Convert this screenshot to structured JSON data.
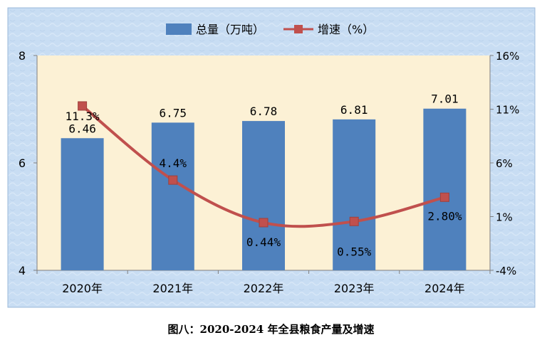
{
  "caption": "图八：2020-2024 年全县粮食产量及增速",
  "chart_data": {
    "type": "bar",
    "categories": [
      "2020年",
      "2021年",
      "2022年",
      "2023年",
      "2024年"
    ],
    "series": [
      {
        "name": "总量（万吨）",
        "type": "bar",
        "axis": "left",
        "values": [
          6.46,
          6.75,
          6.78,
          6.81,
          7.01
        ],
        "labels": [
          "6.46",
          "6.75",
          "6.78",
          "6.81",
          "7.01"
        ],
        "color": "#4F81BD"
      },
      {
        "name": "增速（%）",
        "type": "line",
        "axis": "right",
        "values": [
          11.3,
          4.4,
          0.44,
          0.55,
          2.8
        ],
        "labels": [
          "11.3%",
          "4.4%",
          "0.44%",
          "0.55%",
          "2.80%"
        ],
        "color": "#C0504D"
      }
    ],
    "y_left": {
      "ylim": [
        4,
        8
      ],
      "ticks": [
        "4",
        "6",
        "8"
      ]
    },
    "y_right": {
      "ylim": [
        -4,
        16
      ],
      "ticks": [
        "-4%",
        "1%",
        "6%",
        "11%",
        "16%"
      ]
    },
    "legend_position": "top-center",
    "grid": false
  },
  "colors": {
    "frame_background": "#C6DCF2",
    "plot_background": "#FCF1D5",
    "bar": "#4F81BD",
    "line": "#C0504D"
  }
}
